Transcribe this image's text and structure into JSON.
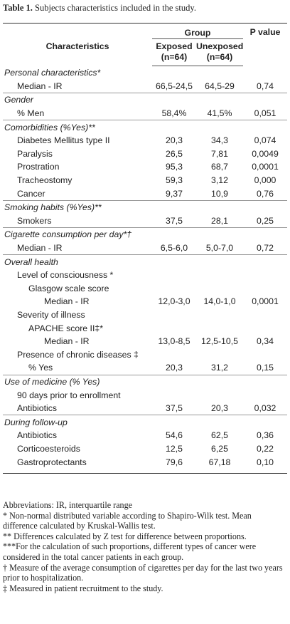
{
  "caption": {
    "label": "Table 1.",
    "text": "Subjects characteristics included in the study."
  },
  "table": {
    "headers": {
      "characteristics": "Characteristics",
      "group": "Group",
      "p_value": "P value",
      "exposed": "Exposed (n=64)",
      "unexposed": "Unexposed (n=64)"
    },
    "sections": [
      {
        "title": "Personal characteristics*",
        "rows": [
          [
            "Median - IR",
            "66,5-24,5",
            "64,5-29",
            "0,74"
          ]
        ]
      },
      {
        "title": "Gender",
        "rows": [
          [
            "% Men",
            "58,4%",
            "41,5%",
            "0,051"
          ]
        ]
      },
      {
        "title": "Comorbidities (%Yes)**",
        "rows": [
          [
            "Diabetes Mellitus type II",
            "20,3",
            "34,3",
            "0,074"
          ],
          [
            "Paralysis",
            "26,5",
            "7,81",
            "0,0049"
          ],
          [
            "Prostration",
            "95,3",
            "68,7",
            "0,0001"
          ],
          [
            "Tracheostomy",
            "59,3",
            "3,12",
            "0,000"
          ],
          [
            "Cancer",
            "9,37",
            "10,9",
            "0,76"
          ]
        ]
      },
      {
        "title": "Smoking habits (%Yes)**",
        "rows": [
          [
            "Smokers",
            "37,5",
            "28,1",
            "0,25"
          ]
        ]
      },
      {
        "title": "Cigarette consumption per day*†",
        "rows": [
          [
            "Median - IR",
            "6,5-6,0",
            "5,0-7,0",
            "0,72"
          ]
        ]
      },
      {
        "title": "Overall health",
        "rows": [
          [
            "Level of consciousness *"
          ],
          [
            "Glasgow scale score"
          ],
          [
            "Median - IR",
            "12,0-3,0",
            "14,0-1,0",
            "0,0001"
          ],
          [
            "Severity of illness"
          ],
          [
            "APACHE score II‡*"
          ],
          [
            "Median - IR",
            "13,0-8,5",
            "12,5-10,5",
            "0,34"
          ],
          [
            "Presence of chronic diseases ‡"
          ],
          [
            "% Yes",
            "20,3",
            "31,2",
            "0,15"
          ]
        ]
      },
      {
        "title": "Use of medicine (% Yes)",
        "rows": [
          [
            "90 days prior to enrollment"
          ],
          [
            "Antibiotics",
            "37,5",
            "20,3",
            "0,032"
          ]
        ]
      },
      {
        "title": "During follow-up",
        "rows": [
          [
            "Antibiotics",
            "54,6",
            "62,5",
            "0,36"
          ],
          [
            "Corticoesteroids",
            "12,5",
            "6,25",
            "0,22"
          ],
          [
            "Gastroprotectants",
            "79,6",
            "67,18",
            "0,10"
          ]
        ]
      }
    ]
  },
  "footnotes": [
    "Abbreviations: IR, interquartile range",
    "* Non-normal distributed variable according to Shapiro-Wilk test. Mean difference calculated by Kruskal-Wallis test.",
    "** Differences calculated by Z test for difference between proportions.",
    "***For the calculation of such proportions, different types of cancer were considered in the total cancer patients in each group.",
    "† Measure of the average consumption of cigarettes per day for the last two years prior to hospitalization.",
    "‡ Measured in patient recruitment to the study."
  ]
}
